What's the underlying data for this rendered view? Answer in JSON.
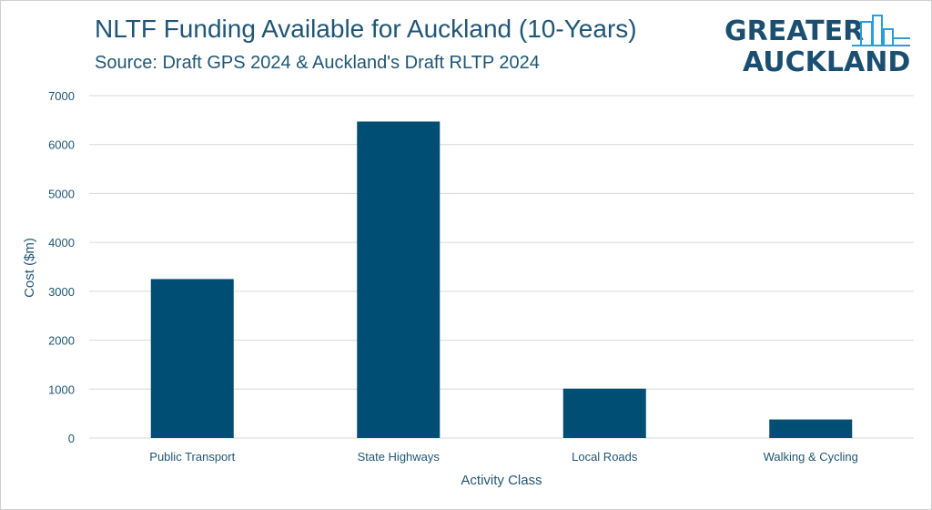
{
  "chart_data": {
    "type": "bar",
    "title": "NLTF Funding Available for Auckland (10-Years)",
    "subtitle": "Source: Draft GPS 2024 & Auckland's Draft RLTP 2024",
    "xlabel": "Activity Class",
    "ylabel": "Cost ($m)",
    "categories": [
      "Public Transport",
      "State Highways",
      "Local Roads",
      "Walking & Cycling"
    ],
    "values": [
      3250,
      6470,
      1010,
      380
    ],
    "ylim": [
      0,
      7000
    ],
    "yticks": [
      0,
      1000,
      2000,
      3000,
      4000,
      5000,
      6000,
      7000
    ],
    "grid": true,
    "legend": "none",
    "colors": {
      "bar": "#004e73",
      "grid": "#d9d9d9",
      "text": "#1f5675"
    }
  },
  "logo": {
    "line1": "GREATER",
    "line2": "AUCKLAND",
    "icon": "city-skyline-icon",
    "color": "#1b4f72",
    "accent": "#2a9fd6"
  }
}
